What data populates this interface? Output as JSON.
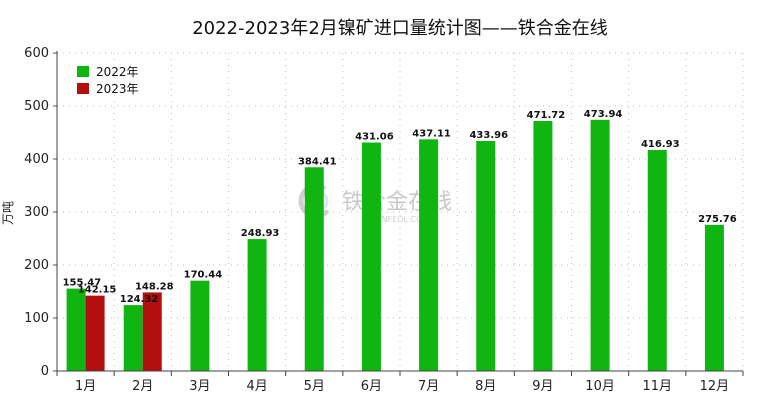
{
  "chart_data": {
    "type": "bar",
    "title": "2022-2023年2月镍矿进口量统计图——铁合金在线",
    "ylabel": "万吨",
    "xlabel": "",
    "ylim": [
      0,
      600
    ],
    "yticks": [
      0,
      100,
      200,
      300,
      400,
      500,
      600
    ],
    "grid": true,
    "legend_position": "top-left",
    "categories": [
      "1月",
      "2月",
      "3月",
      "4月",
      "5月",
      "6月",
      "7月",
      "8月",
      "9月",
      "10月",
      "11月",
      "12月"
    ],
    "series": [
      {
        "name": "2022年",
        "color": "#11b511",
        "values": [
          155.47,
          124.32,
          170.44,
          248.93,
          384.41,
          431.06,
          437.11,
          433.96,
          471.72,
          473.94,
          416.93,
          275.76
        ]
      },
      {
        "name": "2023年",
        "color": "#b30f0f",
        "values": [
          142.15,
          148.28,
          null,
          null,
          null,
          null,
          null,
          null,
          null,
          null,
          null,
          null
        ]
      }
    ]
  },
  "watermark": {
    "text": "铁合金在线",
    "subtext": "CNFEOL.COM"
  }
}
